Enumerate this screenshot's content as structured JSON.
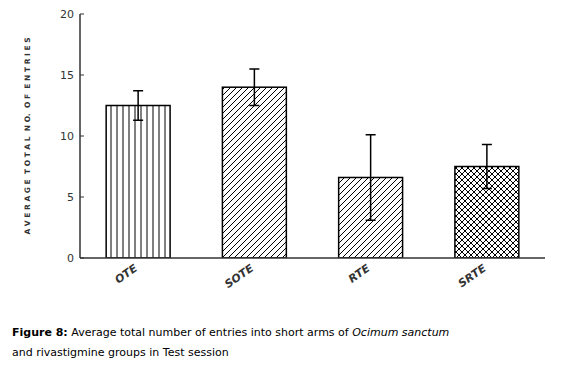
{
  "chart_data": {
    "type": "bar",
    "categories": [
      "OTE",
      "SOTE",
      "RTE",
      "SRTE"
    ],
    "values": [
      12.5,
      14.0,
      6.6,
      7.5
    ],
    "errors": [
      1.2,
      1.5,
      3.5,
      1.8
    ],
    "ylim": [
      0,
      20
    ],
    "yticks": [
      0,
      5,
      10,
      15,
      20
    ],
    "ylabel": "A V E R A G E  T O T A L  N O.  O F  E N T R I E S",
    "caption": [
      "Figure 8:",
      " Average total number of entries into short arms of ",
      "Ocimum sanctum",
      "and rivastigmine groups in Test session"
    ],
    "color": "black",
    "grid": false
  }
}
